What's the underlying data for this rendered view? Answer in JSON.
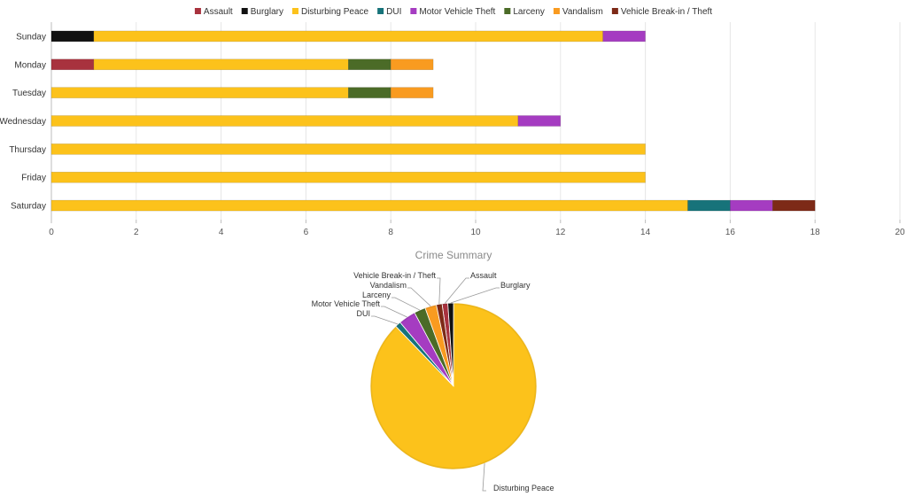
{
  "chart_data": [
    {
      "type": "bar",
      "orientation": "horizontal",
      "stacked": true,
      "categories": [
        "Sunday",
        "Monday",
        "Tuesday",
        "Wednesday",
        "Thursday",
        "Friday",
        "Saturday"
      ],
      "series": [
        {
          "name": "Assault",
          "color": "#a8323e",
          "values": [
            0,
            1,
            0,
            0,
            0,
            0,
            0
          ]
        },
        {
          "name": "Burglary",
          "color": "#111111",
          "values": [
            1,
            0,
            0,
            0,
            0,
            0,
            0
          ]
        },
        {
          "name": "Disturbing Peace",
          "color": "#fcc21b",
          "values": [
            12,
            6,
            7,
            11,
            14,
            14,
            15
          ]
        },
        {
          "name": "DUI",
          "color": "#17737a",
          "values": [
            0,
            0,
            0,
            0,
            0,
            0,
            1
          ]
        },
        {
          "name": "Motor Vehicle Theft",
          "color": "#a53cc1",
          "values": [
            1,
            0,
            0,
            1,
            0,
            0,
            1
          ]
        },
        {
          "name": "Larceny",
          "color": "#4b6b27",
          "values": [
            0,
            1,
            1,
            0,
            0,
            0,
            0
          ]
        },
        {
          "name": "Vandalism",
          "color": "#f99b20",
          "values": [
            0,
            1,
            1,
            0,
            0,
            0,
            0
          ]
        },
        {
          "name": "Vehicle Break-in / Theft",
          "color": "#7d2a17",
          "values": [
            0,
            0,
            0,
            0,
            0,
            0,
            1
          ]
        }
      ],
      "xlim": [
        0,
        20
      ],
      "xticks": [
        0,
        2,
        4,
        6,
        8,
        10,
        12,
        14,
        16,
        18,
        20
      ],
      "legend": "top",
      "grid": true
    },
    {
      "type": "pie",
      "title": "Crime Summary",
      "slices": [
        {
          "label": "Assault",
          "color": "#a8323e",
          "value": 1
        },
        {
          "label": "Burglary",
          "color": "#111111",
          "value": 1
        },
        {
          "label": "Disturbing Peace",
          "color": "#fcc21b",
          "value": 79
        },
        {
          "label": "DUI",
          "color": "#17737a",
          "value": 1
        },
        {
          "label": "Motor Vehicle Theft",
          "color": "#a53cc1",
          "value": 3
        },
        {
          "label": "Larceny",
          "color": "#4b6b27",
          "value": 2
        },
        {
          "label": "Vandalism",
          "color": "#f99b20",
          "value": 2
        },
        {
          "label": "Vehicle Break-in / Theft",
          "color": "#7d2a17",
          "value": 1
        }
      ]
    }
  ]
}
